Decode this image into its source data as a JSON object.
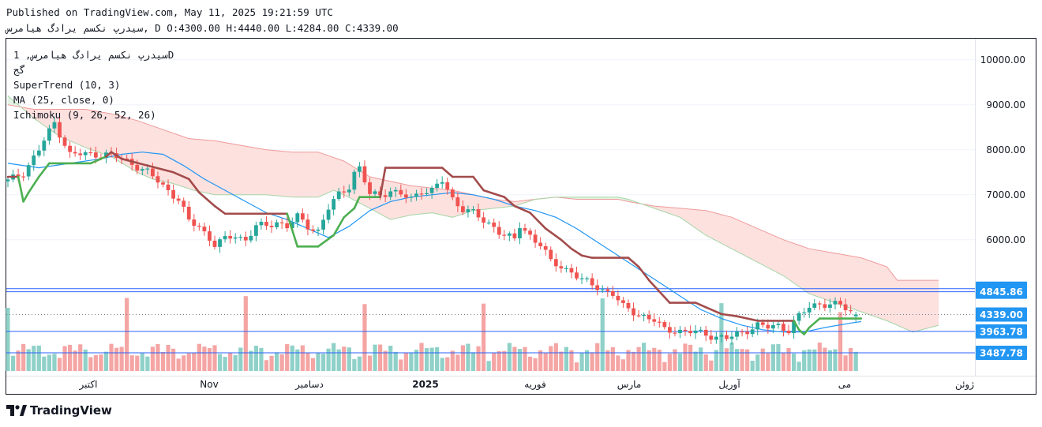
{
  "header": {
    "published": "Published on TradingView.com, May 11, 2025 19:21:59 UTC",
    "ohlc": "سیدرپ نکسم یرادگ هیامرس, D O:4300.00 H:4440.00 L:4284.00 C:4339.00"
  },
  "legend": {
    "symbol": "سیدرپ نکسم یرادگ هیامرس, 1D",
    "sub": "گج",
    "supertrend": "SuperTrend (10, 3)",
    "ma": "MA (25, close, 0)",
    "ichimoku": "Ichimoku (9, 26, 52, 26)"
  },
  "brand": {
    "name": "TradingView",
    "icon": "tradingview-logo-icon"
  },
  "colors": {
    "up": "#26a69a",
    "down": "#ef5350",
    "vol_up": "#8fd1c8",
    "vol_down": "#f4a5a4",
    "supertrend_up": "#4caf50",
    "supertrend_down": "#a34b4b",
    "ma": "#2196f3",
    "cloud_bull": "#e3f2e3",
    "cloud_bear": "#fde1df",
    "tag": "#2196f3",
    "level_line": "#2962ff"
  },
  "chart_data": {
    "type": "candlestick",
    "y_axis": {
      "ticks": [
        "10000.00",
        "9000.00",
        "8000.00",
        "7000.00",
        "6000.00"
      ],
      "tick_values": [
        10000,
        9000,
        8000,
        7000,
        6000
      ],
      "range": [
        3300,
        10400
      ]
    },
    "x_axis": {
      "labels": [
        "اکتبر",
        "Nov",
        "دسامبر",
        "2025",
        "فوریه",
        "مارس",
        "آوریل",
        "می",
        "ژوئن"
      ]
    },
    "price_levels": [
      {
        "label": "4912.46",
        "value": 4912.46
      },
      {
        "label": "4845.86",
        "value": 4845.86
      },
      {
        "label": "4339.00",
        "value": 4339.0
      },
      {
        "label": "3963.78",
        "value": 3963.78
      },
      {
        "label": "3487.78",
        "value": 3487.78
      }
    ],
    "close_path": [
      [
        0,
        7300
      ],
      [
        3,
        7500
      ],
      [
        6,
        8000
      ],
      [
        8,
        8400
      ],
      [
        9,
        8600
      ],
      [
        12,
        7900
      ],
      [
        14,
        7900
      ],
      [
        16,
        7900
      ],
      [
        19,
        7900
      ],
      [
        22,
        7800
      ],
      [
        24,
        7700
      ],
      [
        27,
        7500
      ],
      [
        29,
        7300
      ],
      [
        31,
        7100
      ],
      [
        33,
        6900
      ],
      [
        35,
        6400
      ],
      [
        37,
        6300
      ],
      [
        40,
        5900
      ],
      [
        42,
        6000
      ],
      [
        44,
        6100
      ],
      [
        46,
        6000
      ],
      [
        48,
        6300
      ],
      [
        50,
        6300
      ],
      [
        52,
        6400
      ],
      [
        54,
        6300
      ],
      [
        56,
        6500
      ],
      [
        58,
        6300
      ],
      [
        60,
        6200
      ],
      [
        62,
        6700
      ],
      [
        64,
        7000
      ],
      [
        66,
        7200
      ],
      [
        67,
        7500
      ],
      [
        68,
        7600
      ],
      [
        70,
        7000
      ],
      [
        72,
        7000
      ],
      [
        74,
        7100
      ],
      [
        76,
        7000
      ],
      [
        78,
        6900
      ],
      [
        80,
        7100
      ],
      [
        82,
        7100
      ],
      [
        84,
        7300
      ],
      [
        86,
        6900
      ],
      [
        88,
        6700
      ],
      [
        90,
        6600
      ],
      [
        92,
        6400
      ],
      [
        94,
        6300
      ],
      [
        96,
        6100
      ],
      [
        98,
        6000
      ],
      [
        99,
        6300
      ],
      [
        101,
        6100
      ],
      [
        103,
        5900
      ],
      [
        105,
        5500
      ],
      [
        107,
        5400
      ],
      [
        109,
        5300
      ],
      [
        111,
        5100
      ],
      [
        113,
        5000
      ],
      [
        115,
        4900
      ],
      [
        117,
        4800
      ],
      [
        119,
        4500
      ],
      [
        121,
        4400
      ],
      [
        123,
        4300
      ],
      [
        125,
        4200
      ],
      [
        127,
        4000
      ],
      [
        129,
        4000
      ],
      [
        131,
        3950
      ],
      [
        133,
        3950
      ],
      [
        135,
        3900
      ],
      [
        137,
        3850
      ],
      [
        139,
        3800
      ],
      [
        141,
        3900
      ],
      [
        143,
        4000
      ],
      [
        145,
        4100
      ],
      [
        147,
        4050
      ],
      [
        149,
        4100
      ],
      [
        151,
        4000
      ],
      [
        153,
        4300
      ],
      [
        155,
        4500
      ],
      [
        157,
        4600
      ],
      [
        159,
        4550
      ],
      [
        161,
        4550
      ],
      [
        163,
        4400
      ],
      [
        164,
        4339
      ]
    ],
    "supertrend": [
      [
        0,
        7400
      ],
      [
        1,
        7400
      ],
      [
        2,
        7400
      ],
      [
        3,
        6850
      ],
      [
        4,
        7050
      ],
      [
        6,
        7400
      ],
      [
        8,
        7700
      ],
      [
        16,
        7700
      ],
      [
        19,
        7850
      ],
      [
        20,
        7950
      ],
      [
        22,
        7800
      ],
      [
        27,
        7650
      ],
      [
        32,
        7500
      ],
      [
        35,
        7350
      ],
      [
        37,
        7050
      ],
      [
        40,
        6750
      ],
      [
        42,
        6580
      ],
      [
        54,
        6580
      ],
      [
        56,
        5850
      ],
      [
        60,
        5850
      ],
      [
        63,
        6100
      ],
      [
        65,
        6500
      ],
      [
        67,
        6700
      ],
      [
        68,
        6950
      ],
      [
        72,
        6950
      ],
      [
        73,
        7600
      ],
      [
        84,
        7600
      ],
      [
        86,
        7400
      ],
      [
        90,
        7400
      ],
      [
        92,
        7100
      ],
      [
        96,
        6950
      ],
      [
        98,
        6750
      ],
      [
        101,
        6600
      ],
      [
        104,
        6250
      ],
      [
        107,
        6000
      ],
      [
        109,
        5800
      ],
      [
        111,
        5650
      ],
      [
        113,
        5600
      ],
      [
        120,
        5600
      ],
      [
        122,
        5400
      ],
      [
        124,
        5100
      ],
      [
        126,
        4850
      ],
      [
        128,
        4600
      ],
      [
        133,
        4600
      ],
      [
        135,
        4500
      ],
      [
        138,
        4350
      ],
      [
        141,
        4300
      ],
      [
        145,
        4200
      ],
      [
        152,
        4200
      ],
      [
        153,
        4000
      ],
      [
        154,
        3900
      ],
      [
        155,
        4050
      ],
      [
        157,
        4250
      ],
      [
        165,
        4250
      ]
    ],
    "ma": [
      [
        0,
        7700
      ],
      [
        6,
        7600
      ],
      [
        12,
        7700
      ],
      [
        18,
        7800
      ],
      [
        22,
        7900
      ],
      [
        26,
        7950
      ],
      [
        30,
        7900
      ],
      [
        34,
        7650
      ],
      [
        38,
        7350
      ],
      [
        42,
        7100
      ],
      [
        46,
        6850
      ],
      [
        50,
        6600
      ],
      [
        54,
        6450
      ],
      [
        58,
        6250
      ],
      [
        60,
        6150
      ],
      [
        62,
        6050
      ],
      [
        66,
        6300
      ],
      [
        70,
        6650
      ],
      [
        74,
        6850
      ],
      [
        78,
        6950
      ],
      [
        82,
        7000
      ],
      [
        86,
        7050
      ],
      [
        90,
        7000
      ],
      [
        94,
        6900
      ],
      [
        98,
        6750
      ],
      [
        102,
        6650
      ],
      [
        106,
        6500
      ],
      [
        110,
        6250
      ],
      [
        114,
        5950
      ],
      [
        118,
        5650
      ],
      [
        122,
        5350
      ],
      [
        126,
        5050
      ],
      [
        130,
        4750
      ],
      [
        134,
        4450
      ],
      [
        138,
        4250
      ],
      [
        142,
        4100
      ],
      [
        146,
        4000
      ],
      [
        150,
        3950
      ],
      [
        154,
        3950
      ],
      [
        158,
        4050
      ],
      [
        163,
        4150
      ],
      [
        165,
        4180
      ]
    ],
    "cloud_top": [
      [
        0,
        9000
      ],
      [
        5,
        8900
      ],
      [
        10,
        8900
      ],
      [
        15,
        8900
      ],
      [
        20,
        8800
      ],
      [
        25,
        8650
      ],
      [
        30,
        8450
      ],
      [
        35,
        8250
      ],
      [
        40,
        8200
      ],
      [
        45,
        8100
      ],
      [
        50,
        8000
      ],
      [
        55,
        7950
      ],
      [
        60,
        7950
      ],
      [
        65,
        7750
      ],
      [
        70,
        7400
      ],
      [
        74,
        7300
      ],
      [
        78,
        7200
      ],
      [
        82,
        7150
      ],
      [
        86,
        7100
      ],
      [
        90,
        7000
      ],
      [
        94,
        6900
      ],
      [
        98,
        6850
      ],
      [
        102,
        6900
      ],
      [
        106,
        6950
      ],
      [
        110,
        6900
      ],
      [
        114,
        6900
      ],
      [
        118,
        6900
      ],
      [
        120,
        6850
      ],
      [
        125,
        6750
      ],
      [
        130,
        6700
      ],
      [
        135,
        6650
      ],
      [
        140,
        6500
      ],
      [
        145,
        6250
      ],
      [
        150,
        6000
      ],
      [
        155,
        5800
      ],
      [
        160,
        5700
      ],
      [
        165,
        5600
      ],
      [
        170,
        5400
      ],
      [
        172,
        5100
      ],
      [
        180,
        5100
      ]
    ],
    "cloud_bottom": [
      [
        0,
        9200
      ],
      [
        5,
        8700
      ],
      [
        10,
        8300
      ],
      [
        15,
        8050
      ],
      [
        20,
        7850
      ],
      [
        25,
        7500
      ],
      [
        28,
        7350
      ],
      [
        32,
        7250
      ],
      [
        36,
        7100
      ],
      [
        40,
        7000
      ],
      [
        45,
        7000
      ],
      [
        50,
        7000
      ],
      [
        55,
        6950
      ],
      [
        60,
        6950
      ],
      [
        63,
        7100
      ],
      [
        65,
        7000
      ],
      [
        70,
        6700
      ],
      [
        74,
        6450
      ],
      [
        78,
        6550
      ],
      [
        82,
        6600
      ],
      [
        86,
        6500
      ],
      [
        90,
        6650
      ],
      [
        94,
        6700
      ],
      [
        98,
        6750
      ],
      [
        102,
        6900
      ],
      [
        106,
        6950
      ],
      [
        110,
        6950
      ],
      [
        114,
        6950
      ],
      [
        118,
        6950
      ],
      [
        120,
        6900
      ],
      [
        125,
        6700
      ],
      [
        130,
        6500
      ],
      [
        135,
        6100
      ],
      [
        140,
        5800
      ],
      [
        145,
        5500
      ],
      [
        150,
        5200
      ],
      [
        155,
        4800
      ],
      [
        160,
        4600
      ],
      [
        165,
        4400
      ],
      [
        170,
        4200
      ],
      [
        175,
        3950
      ],
      [
        180,
        4100
      ]
    ]
  }
}
